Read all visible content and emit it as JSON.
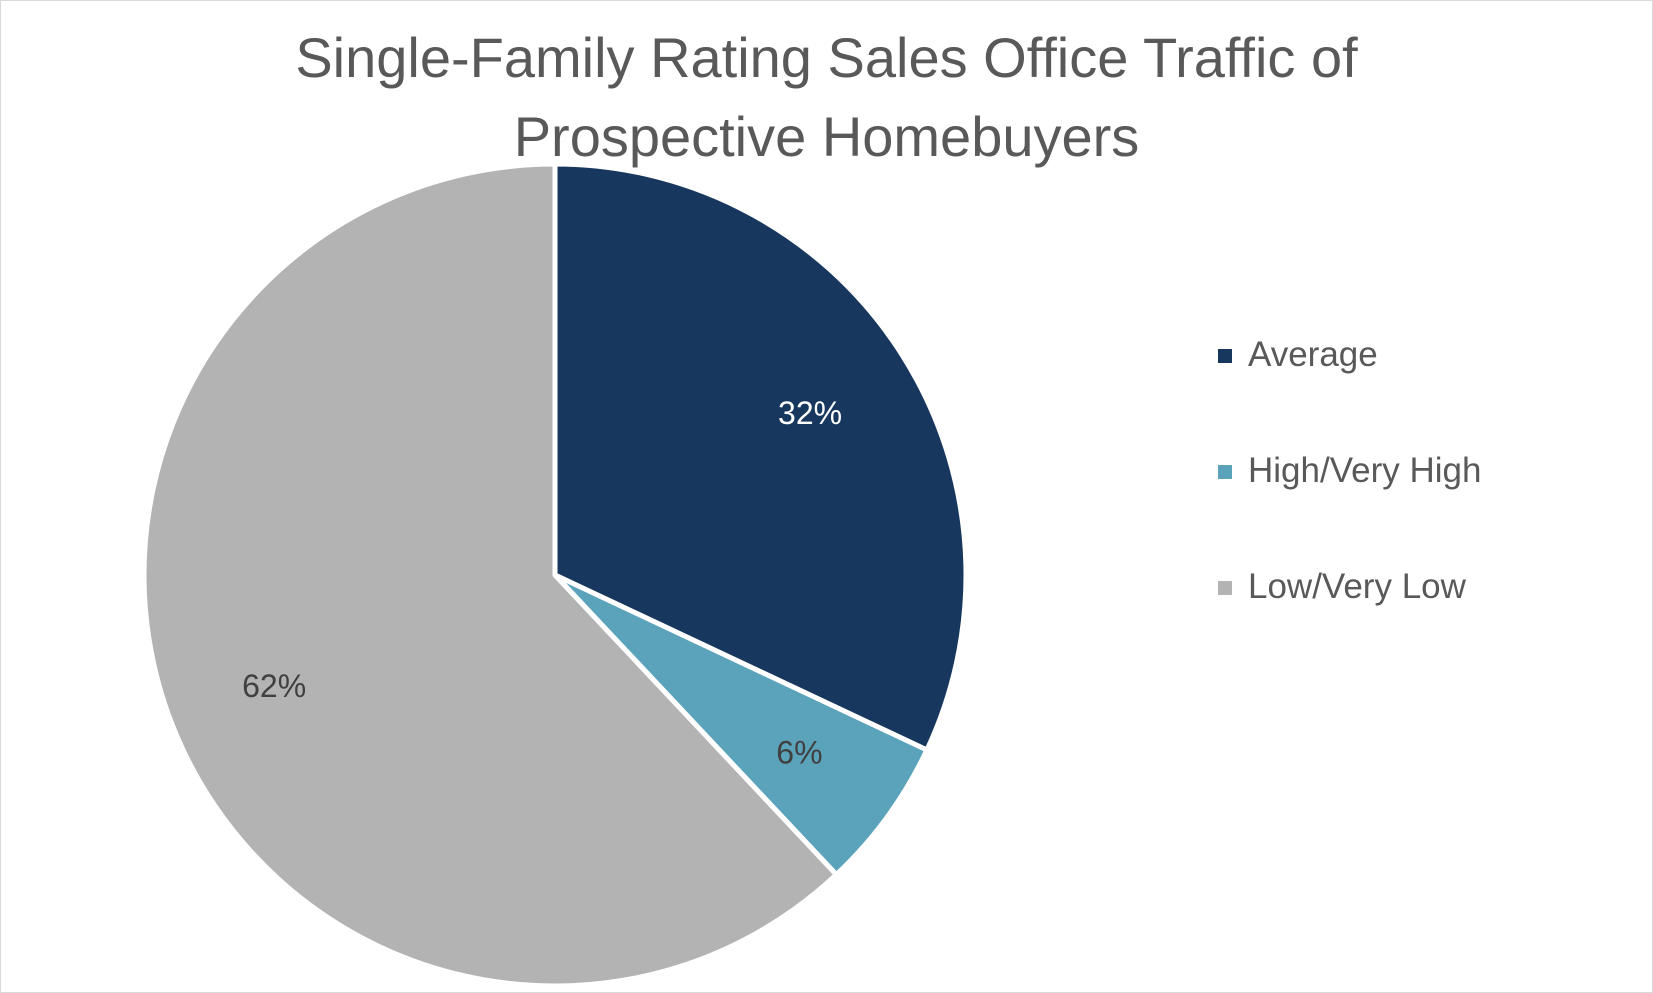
{
  "chart_data": {
    "type": "pie",
    "title_lines": [
      "Single-Family Rating Sales Office Traffic of",
      "Prospective Homebuyers"
    ],
    "categories": [
      "Average",
      "High/Very High",
      "Low/Very Low"
    ],
    "values": [
      32,
      6,
      62
    ],
    "data_labels": [
      "32%",
      "6%",
      "62%"
    ],
    "colors": [
      "#17375e",
      "#5ba3bb",
      "#b3b3b3"
    ],
    "label_colors": [
      "#ffffff",
      "#404040",
      "#404040"
    ],
    "start_angle_deg": 0,
    "direction": "clockwise",
    "legend_position": "right"
  }
}
